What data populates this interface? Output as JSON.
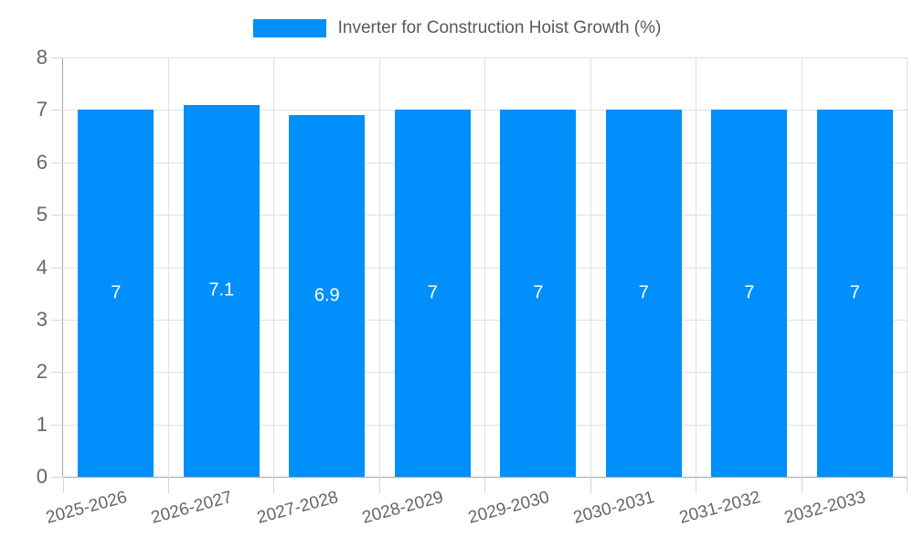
{
  "legend": {
    "label": "Inverter for Construction Hoist Growth (%)"
  },
  "chart_data": {
    "type": "bar",
    "title": "Inverter for Construction Hoist Growth (%)",
    "categories": [
      "2025-2026",
      "2026-2027",
      "2027-2028",
      "2028-2029",
      "2029-2030",
      "2030-2031",
      "2031-2032",
      "2032-2033"
    ],
    "series": [
      {
        "name": "Inverter for Construction Hoist Growth (%)",
        "values": [
          7,
          7.1,
          6.9,
          7,
          7,
          7,
          7,
          7
        ],
        "value_labels": [
          "7",
          "7.1",
          "6.9",
          "7",
          "7",
          "7",
          "7",
          "7"
        ]
      }
    ],
    "xlabel": "",
    "ylabel": "",
    "ylim": [
      0,
      8
    ],
    "yticks": [
      0,
      1,
      2,
      3,
      4,
      5,
      6,
      7,
      8
    ],
    "grid": "on",
    "legend_position": "top",
    "colors": {
      "bar": "#008FFB",
      "data_label": "#ffffff",
      "grid_line": "#e0e0e0",
      "axis_line": "#a6a6a6",
      "tick_label": "#666666",
      "legend_text": "#595959"
    }
  }
}
